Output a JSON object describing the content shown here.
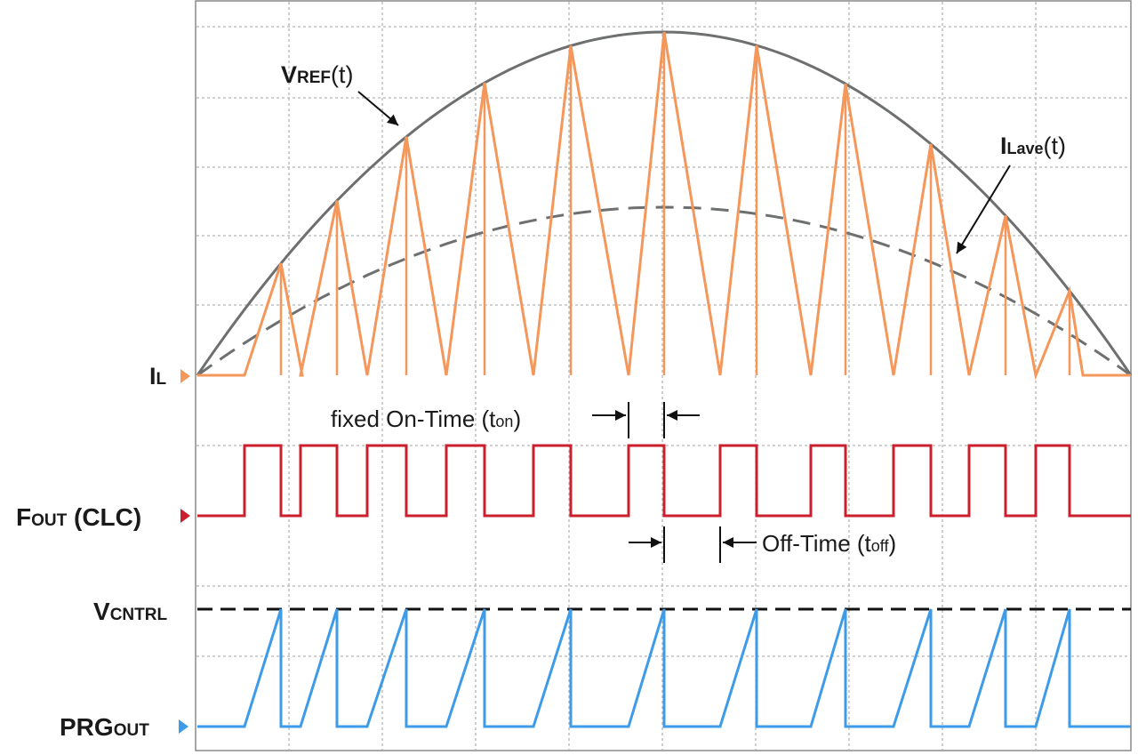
{
  "labels": {
    "vref": {
      "main": "V",
      "sub": "REF",
      "tail": "(t)"
    },
    "ilave": {
      "main": "I",
      "sub": "Lave",
      "tail": "(t)"
    },
    "il": {
      "main": "I",
      "sub": "L"
    },
    "fout": {
      "main": "F",
      "sub": "OUT",
      "tail": " (CLC)"
    },
    "vcntrl": {
      "main": "V",
      "sub": "CNTRL"
    },
    "prgout": {
      "main": "PRG",
      "sub": "OUT"
    },
    "on_time": {
      "main": "fixed On-Time (t",
      "sub": "on",
      "tail": ")"
    },
    "off_time": {
      "main": "Off-Time (t",
      "sub": "off",
      "tail": ")"
    }
  },
  "colors": {
    "il": "#f5975b",
    "fout": "#cc1f2d",
    "prg": "#3d9be8",
    "envelope": "#6d706e",
    "average": "#6d706e",
    "vcntrl": "#111111",
    "grid": "#b5b5b5",
    "text": "#1a1a1a"
  },
  "icons": {
    "il": "triangle-right-marker-icon",
    "fout": "triangle-right-marker-icon",
    "prgout": "triangle-right-marker-icon",
    "annotations": "arrow-icon"
  }
}
